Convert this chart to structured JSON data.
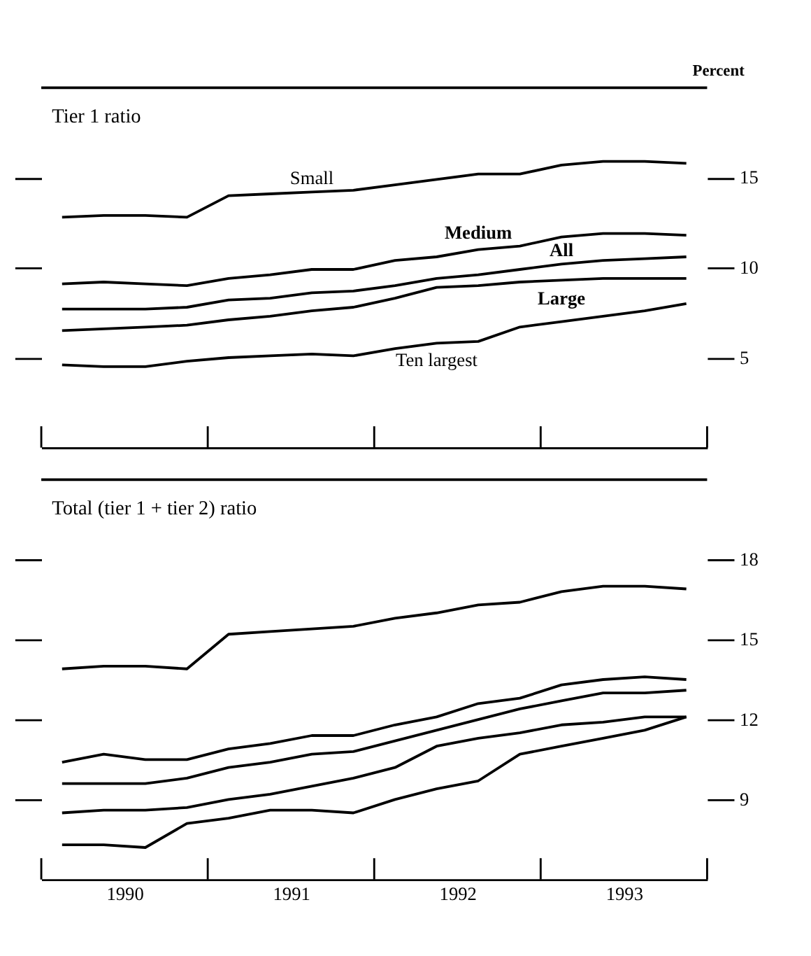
{
  "chart_data": [
    {
      "type": "line",
      "title": "Tier 1 ratio",
      "ylabel": "Percent",
      "x": [
        1990.125,
        1990.375,
        1990.625,
        1990.875,
        1991.125,
        1991.375,
        1991.625,
        1991.875,
        1992.125,
        1992.375,
        1992.625,
        1992.875,
        1993.125,
        1993.375,
        1993.625,
        1993.875
      ],
      "xlim": [
        1990,
        1994
      ],
      "xticks": [
        {
          "value": 1990,
          "label": null
        },
        {
          "value": 1991,
          "label": null
        },
        {
          "value": 1992,
          "label": null
        },
        {
          "value": 1993,
          "label": null
        },
        {
          "value": 1994,
          "label": null
        }
      ],
      "ylim": [
        0,
        20
      ],
      "yticks": [
        5,
        10,
        15
      ],
      "tick_labels": "y",
      "grid": false,
      "marker": "none",
      "line_style": "solid",
      "series": [
        {
          "name": "Small",
          "color": "#000000",
          "values": [
            12.8,
            12.9,
            12.9,
            12.8,
            14.0,
            14.1,
            14.2,
            14.3,
            14.6,
            14.9,
            15.2,
            15.2,
            15.7,
            15.9,
            15.9,
            15.8
          ]
        },
        {
          "name": "Medium",
          "color": "#000000",
          "values": [
            9.1,
            9.2,
            9.1,
            9.0,
            9.4,
            9.6,
            9.9,
            9.9,
            10.4,
            10.6,
            11.0,
            11.2,
            11.7,
            11.9,
            11.9,
            11.8
          ]
        },
        {
          "name": "All",
          "color": "#000000",
          "values": [
            7.7,
            7.7,
            7.7,
            7.8,
            8.2,
            8.3,
            8.6,
            8.7,
            9.0,
            9.4,
            9.6,
            9.9,
            10.2,
            10.4,
            10.5,
            10.6
          ]
        },
        {
          "name": "Large",
          "color": "#000000",
          "values": [
            6.5,
            6.6,
            6.7,
            6.8,
            7.1,
            7.3,
            7.6,
            7.8,
            8.3,
            8.9,
            9.0,
            9.2,
            9.3,
            9.4,
            9.4,
            9.4
          ]
        },
        {
          "name": "Ten largest",
          "color": "#000000",
          "values": [
            4.6,
            4.5,
            4.5,
            4.8,
            5.0,
            5.1,
            5.2,
            5.1,
            5.5,
            5.8,
            5.9,
            6.7,
            7.0,
            7.3,
            7.6,
            8.0
          ]
        }
      ]
    },
    {
      "type": "line",
      "title": "Total (tier 1 + tier 2) ratio",
      "x": [
        1990.125,
        1990.375,
        1990.625,
        1990.875,
        1991.125,
        1991.375,
        1991.625,
        1991.875,
        1992.125,
        1992.375,
        1992.625,
        1992.875,
        1993.125,
        1993.375,
        1993.625,
        1993.875
      ],
      "xlim": [
        1990,
        1994
      ],
      "xticks": [
        {
          "value": 1990,
          "label": null
        },
        {
          "value": 1991,
          "label": null
        },
        {
          "value": 1992,
          "label": null
        },
        {
          "value": 1993,
          "label": null
        },
        {
          "value": 1994,
          "label": null
        },
        {
          "value": 1990.5,
          "label": "1990"
        },
        {
          "value": 1991.5,
          "label": "1991"
        },
        {
          "value": 1992.5,
          "label": "1992"
        },
        {
          "value": 1993.5,
          "label": "1993"
        }
      ],
      "ylim": [
        6,
        21
      ],
      "yticks": [
        9,
        12,
        15,
        18
      ],
      "grid": false,
      "marker": "none",
      "line_style": "solid",
      "series": [
        {
          "color": "#000000",
          "values": [
            13.9,
            14.0,
            14.0,
            13.9,
            15.2,
            15.3,
            15.4,
            15.5,
            15.8,
            16.0,
            16.3,
            16.4,
            16.8,
            17.0,
            17.0,
            16.9
          ]
        },
        {
          "color": "#000000",
          "values": [
            10.4,
            10.7,
            10.5,
            10.5,
            10.9,
            11.1,
            11.4,
            11.4,
            11.8,
            12.1,
            12.6,
            12.8,
            13.3,
            13.5,
            13.6,
            13.5
          ]
        },
        {
          "color": "#000000",
          "values": [
            9.6,
            9.6,
            9.6,
            9.8,
            10.2,
            10.4,
            10.7,
            10.8,
            11.2,
            11.6,
            12.0,
            12.4,
            12.7,
            13.0,
            13.0,
            13.1
          ]
        },
        {
          "color": "#000000",
          "values": [
            8.5,
            8.6,
            8.6,
            8.7,
            9.0,
            9.2,
            9.5,
            9.8,
            10.2,
            11.0,
            11.3,
            11.5,
            11.8,
            11.9,
            12.1,
            12.1
          ]
        },
        {
          "color": "#000000",
          "values": [
            7.3,
            7.3,
            7.2,
            8.1,
            8.3,
            8.6,
            8.6,
            8.5,
            9.0,
            9.4,
            9.7,
            10.7,
            11.0,
            11.3,
            11.6,
            12.1
          ]
        }
      ]
    }
  ]
}
